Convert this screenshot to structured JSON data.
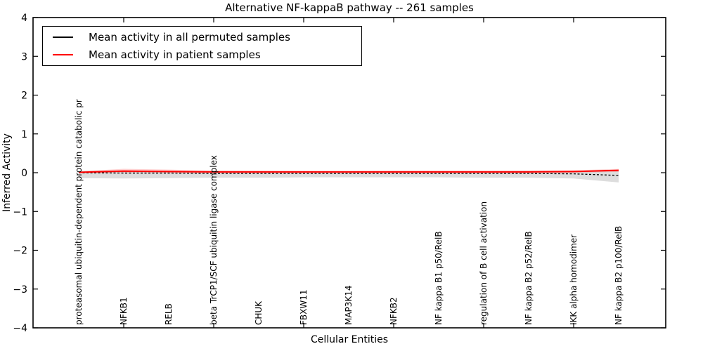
{
  "chart_data": {
    "type": "line",
    "title": "Alternative NF-kappaB pathway -- 261 samples",
    "xlabel": "Cellular Entities",
    "ylabel": "Inferred Activity",
    "ylim": [
      -4,
      4
    ],
    "xtick_label_rotation": 90,
    "grid": false,
    "legend_position": "upper left",
    "yticks": [
      {
        "v": 4,
        "label": "4"
      },
      {
        "v": 3,
        "label": "3"
      },
      {
        "v": 2,
        "label": "2"
      },
      {
        "v": 1,
        "label": "1"
      },
      {
        "v": 0,
        "label": "0"
      },
      {
        "v": -1,
        "label": "−1"
      },
      {
        "v": -2,
        "label": "−2"
      },
      {
        "v": -3,
        "label": "−3"
      },
      {
        "v": -4,
        "label": "−4"
      }
    ],
    "categories": [
      "proteasomal ubiquitin-dependent protein catabolic pr",
      "NFKB1",
      "RELB",
      "beta TrCP1/SCF ubiquitin ligase complex",
      "CHUK",
      "FBXW11",
      "MAP3K14",
      "NFKB2",
      "NF kappa B1 p50/RelB",
      "regulation of B cell activation",
      "NF kappa B2 p52/RelB",
      "IKK alpha homodimer",
      "NF kappa B2 p100/RelB"
    ],
    "series": [
      {
        "name": "Mean activity in all permuted samples",
        "color": "#000000",
        "style": "dashed",
        "values": [
          0.0,
          -0.01,
          -0.01,
          -0.02,
          -0.02,
          -0.02,
          -0.02,
          -0.02,
          -0.02,
          -0.02,
          -0.02,
          -0.03,
          -0.07
        ]
      },
      {
        "name": "Mean activity in patient samples",
        "color": "#ff0000",
        "style": "solid",
        "values": [
          0.01,
          0.04,
          0.03,
          0.02,
          0.02,
          0.02,
          0.02,
          0.02,
          0.02,
          0.02,
          0.02,
          0.03,
          0.06
        ]
      }
    ],
    "bands": [
      {
        "name": "permuted-confidence-band",
        "color": "#777777",
        "opacity": 0.25,
        "upper": [
          0.05,
          0.06,
          0.05,
          0.05,
          0.04,
          0.04,
          0.04,
          0.04,
          0.04,
          0.04,
          0.05,
          0.05,
          0.07
        ],
        "lower": [
          -0.14,
          -0.15,
          -0.14,
          -0.13,
          -0.13,
          -0.12,
          -0.12,
          -0.12,
          -0.12,
          -0.13,
          -0.13,
          -0.15,
          -0.25
        ]
      },
      {
        "name": "patient-confidence-band",
        "color": "#ff0000",
        "opacity": 0.18,
        "upper": [
          0.03,
          0.1,
          0.08,
          0.05,
          0.05,
          0.04,
          0.04,
          0.05,
          0.05,
          0.05,
          0.05,
          0.06,
          0.1
        ],
        "lower": [
          -0.01,
          0.0,
          0.0,
          -0.01,
          -0.01,
          -0.01,
          -0.01,
          -0.01,
          -0.01,
          -0.01,
          -0.01,
          0.0,
          0.02
        ]
      }
    ]
  }
}
